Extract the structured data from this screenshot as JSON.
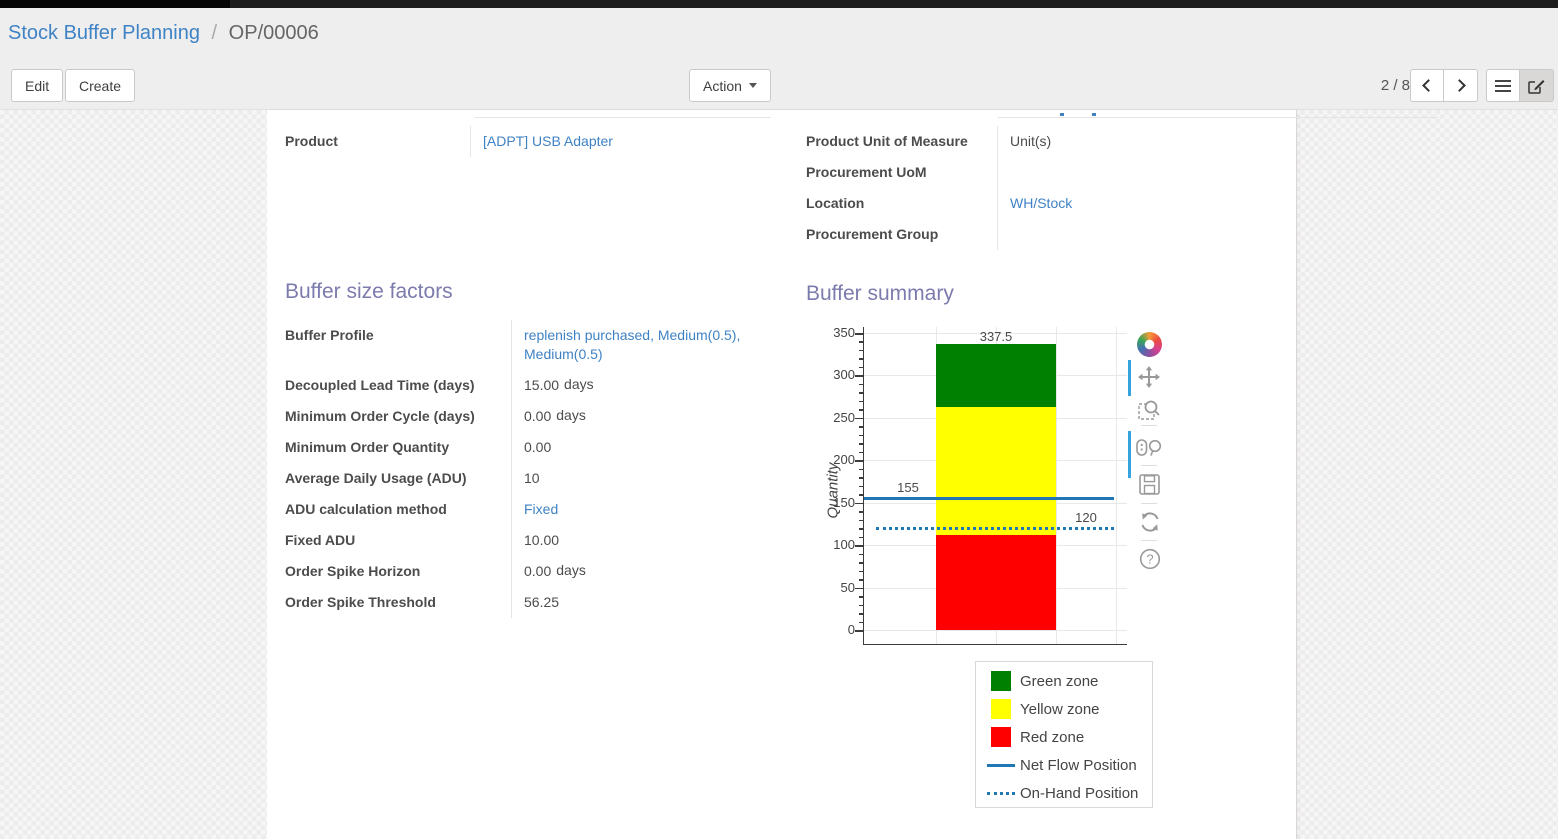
{
  "breadcrumb": {
    "parent": "Stock Buffer Planning",
    "separator": "/",
    "current": "OP/00006"
  },
  "toolbar": {
    "edit": "Edit",
    "create": "Create",
    "action": "Action",
    "pager": "2 / 8"
  },
  "product_info": {
    "left_fields": [
      {
        "label": "Product",
        "value": "[ADPT] USB Adapter",
        "link": true
      }
    ],
    "right_fields": [
      {
        "label": "Product Unit of Measure",
        "value": "Unit(s)",
        "link": false
      },
      {
        "label": "Procurement UoM",
        "value": "",
        "link": false
      },
      {
        "label": "Location",
        "value": "WH/Stock",
        "link": true
      },
      {
        "label": "Procurement Group",
        "value": "",
        "link": false
      }
    ]
  },
  "buffer_size_factors": {
    "title": "Buffer size factors",
    "fields": [
      {
        "label": "Buffer Profile",
        "value": "replenish purchased, Medium(0.5), Medium(0.5)",
        "link": true
      },
      {
        "label": "Decoupled Lead Time (days)",
        "value": "15.00",
        "unit": "days"
      },
      {
        "label": "Minimum Order Cycle (days)",
        "value": "0.00",
        "unit": "days"
      },
      {
        "label": "Minimum Order Quantity",
        "value": "0.00"
      },
      {
        "label": "Average Daily Usage (ADU)",
        "value": "10"
      },
      {
        "label": "ADU calculation method",
        "value": "Fixed",
        "link": true
      },
      {
        "label": "Fixed ADU",
        "value": "10.00"
      },
      {
        "label": "Order Spike Horizon",
        "value": "0.00",
        "unit": "days"
      },
      {
        "label": "Order Spike Threshold",
        "value": "56.25"
      }
    ]
  },
  "buffer_summary": {
    "title": "Buffer summary"
  },
  "chart_data": {
    "type": "bar",
    "title": "",
    "xlabel": "",
    "ylabel": "Quantity",
    "ylim": [
      0,
      350
    ],
    "yticks": [
      0,
      50,
      100,
      150,
      200,
      250,
      300,
      350
    ],
    "minor_tick_step": 10,
    "grid": true,
    "series": [
      {
        "name": "Red zone",
        "color": "#ff0000",
        "from": 0,
        "to": 112.5,
        "label": "112.5"
      },
      {
        "name": "Yellow zone",
        "color": "#ffff00",
        "from": 112.5,
        "to": 262.5,
        "label": "262.5"
      },
      {
        "name": "Green zone",
        "color": "#008000",
        "from": 262.5,
        "to": 337.5,
        "label": "337.5"
      }
    ],
    "lines": [
      {
        "name": "Net Flow Position",
        "value": 155,
        "label": "155",
        "style": "solid",
        "color": "#1f77b4"
      },
      {
        "name": "On-Hand Position",
        "value": 120,
        "label": "120",
        "style": "dotted",
        "color": "#1f77b4"
      }
    ],
    "legend_position": "bottom-right"
  },
  "chart_toolbar": {
    "icons": [
      "plotly-logo",
      "pan",
      "zoom",
      "hover",
      "save",
      "reset",
      "help"
    ]
  },
  "colors": {
    "link": "#3f82c4",
    "heading": "#7c7bad",
    "red_zone": "#ff0000",
    "yellow_zone": "#ffff00",
    "green_zone": "#008000",
    "flow_line": "#1f77b4"
  }
}
